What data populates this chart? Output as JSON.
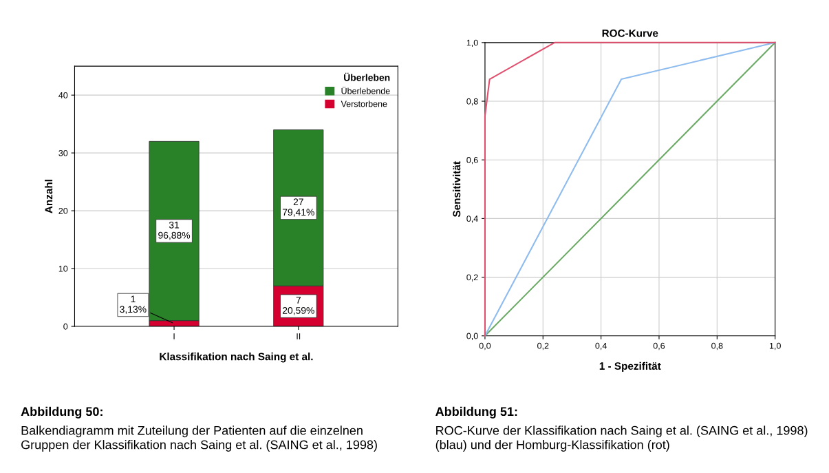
{
  "chart_data": [
    {
      "type": "bar",
      "stacked": true,
      "xlabel": "Klassifikation nach Saing et al.",
      "ylabel": "Anzahl",
      "legend_title": "Überleben",
      "legend": "top right",
      "grid": "y",
      "categories": [
        "I",
        "II"
      ],
      "ylim": [
        0,
        45
      ],
      "yticks": [
        0,
        10,
        20,
        30,
        40
      ],
      "series": [
        {
          "name": "Verstorbene",
          "color": "#d5002f",
          "values": [
            1,
            7
          ],
          "value_labels": [
            "1\n3,13%",
            "7\n20,59%"
          ]
        },
        {
          "name": "Überlebende",
          "color": "#2a8228",
          "values": [
            31,
            27
          ],
          "value_labels": [
            "31\n96,88%",
            "27\n79,41%"
          ]
        }
      ],
      "annotations": [
        "Abbildung 50:",
        "Balkendiagramm mit Zuteilung der Patienten auf die einzelnen Gruppen der Klassifikation nach Saing et al. (SAING et al., 1998)"
      ]
    },
    {
      "type": "line",
      "title": "ROC-Kurve",
      "xlabel": "1 - Spezifität",
      "ylabel": "Sensitivität",
      "grid": true,
      "xlim": [
        0,
        1
      ],
      "ylim": [
        0,
        1
      ],
      "xticks": [
        {
          "value": 0,
          "label": "0,0"
        },
        {
          "value": 0.2,
          "label": "0,2"
        },
        {
          "value": 0.4,
          "label": "0,4"
        },
        {
          "value": 0.6,
          "label": "0,6"
        },
        {
          "value": 0.8,
          "label": "0,8"
        },
        {
          "value": 1,
          "label": "1,0"
        }
      ],
      "yticks": [
        {
          "value": 0,
          "label": "0,0"
        },
        {
          "value": 0.2,
          "label": "0,2"
        },
        {
          "value": 0.4,
          "label": "0,4"
        },
        {
          "value": 0.6,
          "label": "0,6"
        },
        {
          "value": 0.8,
          "label": "0,8"
        },
        {
          "value": 1,
          "label": "1,0"
        }
      ],
      "series": [
        {
          "color": "#6aaa64",
          "x": [
            0,
            1
          ],
          "values": [
            0,
            1
          ]
        },
        {
          "color": "#8fbcef",
          "x": [
            0,
            0.47,
            1
          ],
          "values": [
            0,
            0.875,
            1
          ]
        },
        {
          "color": "#e0506e",
          "x": [
            0,
            0,
            0.016,
            0.24,
            1
          ],
          "values": [
            0,
            0.75,
            0.875,
            1,
            1
          ]
        }
      ],
      "annotations": [
        "Abbildung 51:",
        "ROC-Kurve der Klassifikation nach Saing et al. (SAING et al., 1998) (blau) und der Homburg-Klassifikation (rot)"
      ]
    }
  ]
}
